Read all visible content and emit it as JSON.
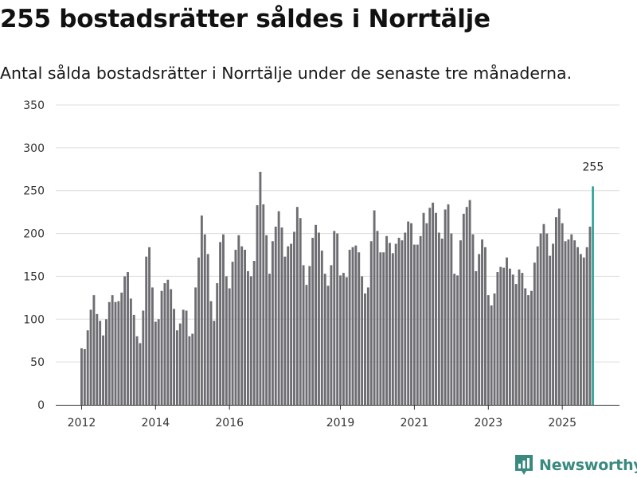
{
  "header": {
    "title": "255 bostadsrätter såldes i Norrtälje",
    "subtitle": "Antal sålda bostadsrätter i Norrtälje under de senaste tre månaderna."
  },
  "colors": {
    "bar": "#6e6d72",
    "highlight": "#1a9a8f",
    "grid": "#dddddd",
    "axis": "#333333",
    "brand": "#3a8a7f"
  },
  "brand": {
    "name": "Newsworthy",
    "icon": "bar-chart-logo-icon"
  },
  "chart_data": {
    "type": "bar",
    "title": "255 bostadsrätter såldes i Norrtälje",
    "subtitle": "Antal sålda bostadsrätter i Norrtälje under de senaste tre månaderna.",
    "xlabel": "",
    "ylabel": "",
    "ylim": [
      0,
      350
    ],
    "y_ticks": [
      "0",
      "50",
      "100",
      "150",
      "200",
      "250",
      "300",
      "350"
    ],
    "grid": true,
    "legend": "none",
    "x_ticks": [
      {
        "label": "2012",
        "index": 0
      },
      {
        "label": "2014",
        "index": 24
      },
      {
        "label": "2016",
        "index": 48
      },
      {
        "label": "2019",
        "index": 84
      },
      {
        "label": "2021",
        "index": 108
      },
      {
        "label": "2023",
        "index": 132
      },
      {
        "label": "2025",
        "index": 156
      }
    ],
    "first_period": "2012-01",
    "highlight_index": 166,
    "annotation": {
      "index": 166,
      "label": "255"
    },
    "values": [
      66,
      65,
      87,
      111,
      128,
      106,
      98,
      81,
      100,
      120,
      128,
      120,
      121,
      131,
      150,
      155,
      124,
      105,
      80,
      72,
      110,
      173,
      184,
      137,
      97,
      100,
      133,
      142,
      146,
      135,
      112,
      87,
      95,
      111,
      110,
      80,
      83,
      137,
      172,
      221,
      199,
      176,
      121,
      98,
      142,
      190,
      199,
      150,
      136,
      167,
      181,
      198,
      185,
      181,
      156,
      150,
      168,
      233,
      272,
      234,
      198,
      153,
      191,
      208,
      226,
      207,
      173,
      185,
      188,
      202,
      231,
      218,
      163,
      140,
      162,
      195,
      210,
      201,
      180,
      153,
      139,
      163,
      203,
      200,
      151,
      154,
      149,
      181,
      184,
      186,
      178,
      150,
      130,
      137,
      191,
      227,
      203,
      178,
      178,
      197,
      189,
      177,
      188,
      195,
      192,
      201,
      214,
      212,
      187,
      187,
      197,
      224,
      212,
      230,
      236,
      224,
      201,
      194,
      228,
      234,
      200,
      153,
      151,
      192,
      223,
      231,
      239,
      199,
      156,
      176,
      193,
      184,
      128,
      116,
      130,
      155,
      161,
      160,
      172,
      159,
      152,
      141,
      158,
      154,
      136,
      128,
      133,
      166,
      185,
      200,
      211,
      200,
      174,
      188,
      219,
      229,
      212,
      191,
      193,
      199,
      192,
      184,
      176,
      172,
      184,
      208,
      255
    ]
  }
}
